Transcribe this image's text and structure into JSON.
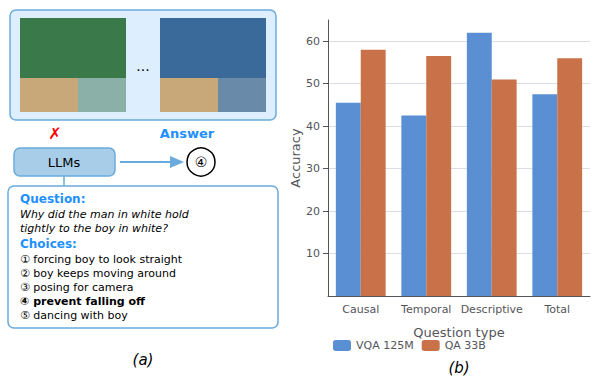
{
  "chart_data": {
    "type": "bar",
    "categories": [
      "Causal",
      "Temporal",
      "Descriptive",
      "Total"
    ],
    "series": [
      {
        "name": "VQA 125M",
        "color": "#5B8FD4",
        "values": [
          45.5,
          42.5,
          62.0,
          47.5
        ]
      },
      {
        "name": "QA 33B",
        "color": "#C9724A",
        "values": [
          58.0,
          56.5,
          51.0,
          56.0
        ]
      }
    ],
    "ylabel": "Accuracy",
    "xlabel": "Question type",
    "ylim": [
      0,
      65
    ],
    "yticks": [
      10,
      20,
      30,
      40,
      50,
      60
    ],
    "grid": true,
    "legend": "lower left",
    "annotations": [
      "...",
      "✗",
      "Answer",
      "LLMs",
      "④",
      "Question:",
      "Why did the man in white hold",
      "tightly to the boy in white?",
      "Choices:",
      "① forcing boy to look straight",
      "② boy keeps moving around",
      "③ posing for camera",
      "④ prevent falling off",
      "⑤ dancing with boy",
      "(a)",
      "(b)"
    ]
  }
}
